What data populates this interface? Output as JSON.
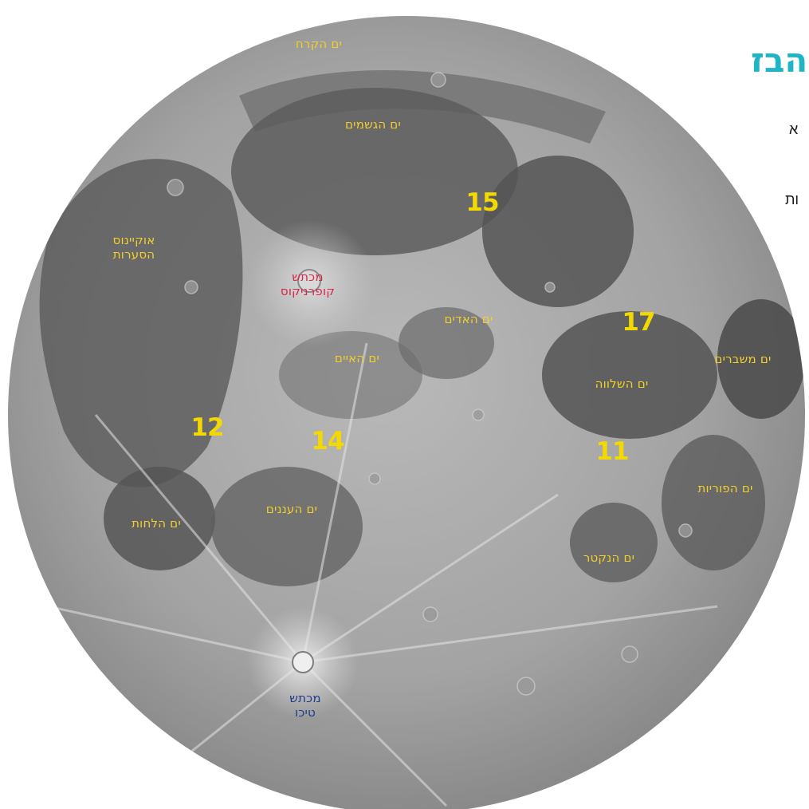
{
  "colors": {
    "mare_label": "#f2cf2a",
    "mission_number": "#f4d900",
    "crater_copernicus": "#d6284b",
    "crater_tycho": "#1f3a8c",
    "logo": "#1fb5c4"
  },
  "logo": {
    "text": "הבז("
  },
  "edge_text": {
    "line1": "א",
    "line2": "ות"
  },
  "labels": {
    "mare_frigoris": "ים הקרח",
    "mare_imbrium": "ים הגשמים",
    "oceanus_procellarum": "אוקיינוס\nהסערות",
    "copernicus": "מכתש\nקופרניקוס",
    "mare_vaporum": "ים האדים",
    "mare_insularum": "ים האיים",
    "mare_crisium": "ים משברים",
    "mare_tranquillitatis": "ים השלווה",
    "mare_fecunditatis": "ים הפוריות",
    "mare_humorum": "ים הלחות",
    "mare_nubium": "ים העננים",
    "mare_nectaris": "ים הנקטר",
    "tycho": "מכתש\nטיכו"
  },
  "missions": {
    "apollo_15": "15",
    "apollo_17": "17",
    "apollo_12": "12",
    "apollo_14": "14",
    "apollo_11": "11"
  }
}
